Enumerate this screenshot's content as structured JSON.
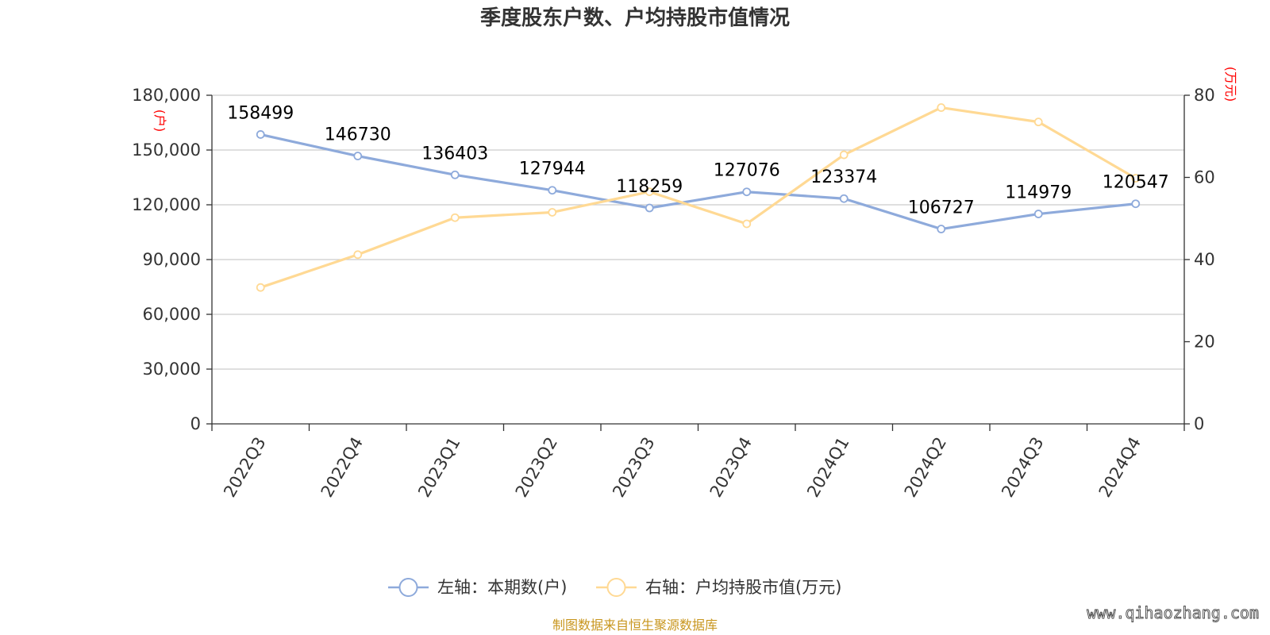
{
  "colors": {
    "series_left": "#8eaadb",
    "series_right": "#ffd994",
    "axis": "#333333",
    "grid": "#cccccc",
    "unit": "#ff0000",
    "source": "#c8961e"
  },
  "chart_data": {
    "type": "line",
    "title": "季度股东户数、户均持股市值情况",
    "categories": [
      "2022Q3",
      "2022Q4",
      "2023Q1",
      "2023Q2",
      "2023Q3",
      "2023Q4",
      "2024Q1",
      "2024Q2",
      "2024Q3",
      "2024Q4"
    ],
    "left_axis": {
      "unit": "(户)",
      "ylim": [
        0,
        180000
      ],
      "ticks": [
        0,
        30000,
        60000,
        90000,
        120000,
        150000,
        180000
      ],
      "tick_labels": [
        "0",
        "30,000",
        "60,000",
        "90,000",
        "120,000",
        "150,000",
        "180,000"
      ]
    },
    "right_axis": {
      "unit": "(万元)",
      "ylim": [
        0,
        80
      ],
      "ticks": [
        0,
        20,
        40,
        60,
        80
      ],
      "tick_labels": [
        "0",
        "20",
        "40",
        "60",
        "80"
      ]
    },
    "series": [
      {
        "name": "左轴：本期数(户)",
        "axis": "left",
        "color": "#8eaadb",
        "values": [
          158499,
          146730,
          136403,
          127944,
          118259,
          127076,
          123374,
          106727,
          114979,
          120547
        ],
        "labels": [
          "158499",
          "146730",
          "136403",
          "127944",
          "118259",
          "127076",
          "123374",
          "106727",
          "114979",
          "120547"
        ]
      },
      {
        "name": "右轴：户均持股市值(万元)",
        "axis": "right",
        "color": "#ffd994",
        "values": [
          33.2,
          41.2,
          50.2,
          51.5,
          56.5,
          48.7,
          65.5,
          77.0,
          73.5,
          59.8
        ]
      }
    ],
    "grid": true,
    "legend": "bottom-center"
  },
  "footer": {
    "source": "制图数据来自恒生聚源数据库",
    "watermark": "www.qihaozhang.com"
  }
}
